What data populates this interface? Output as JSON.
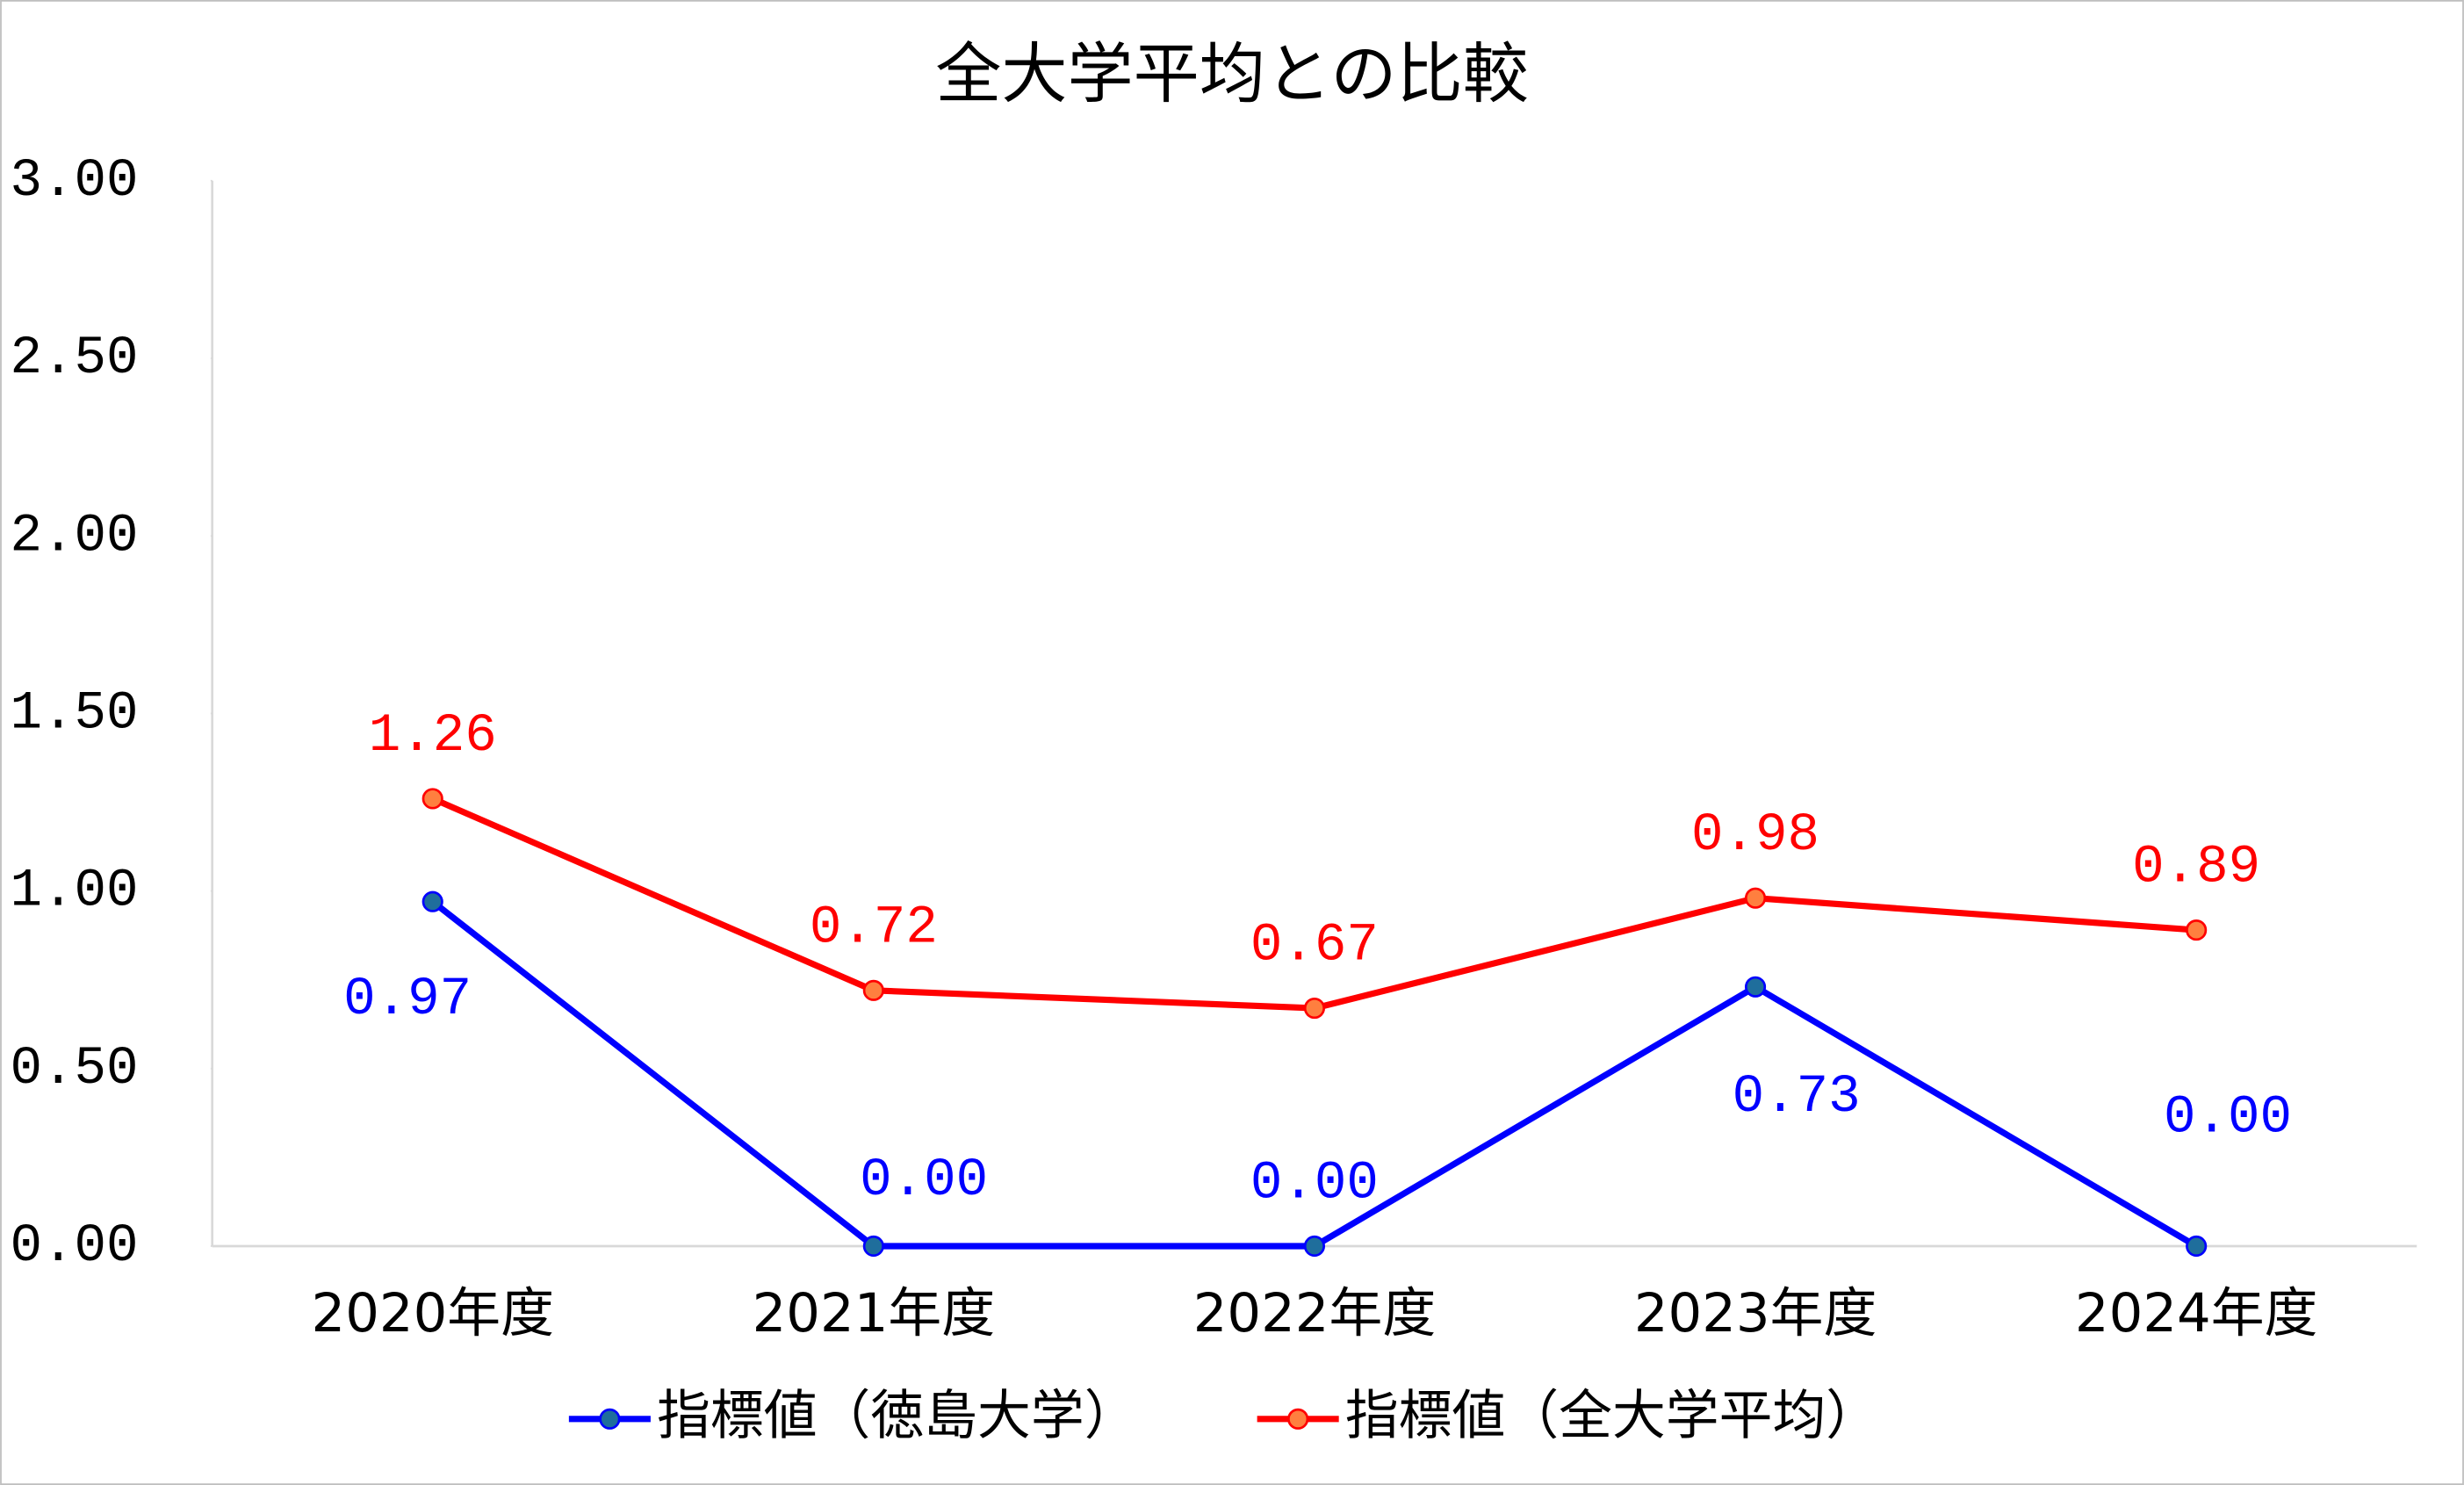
{
  "chart_data": {
    "type": "line",
    "title": "全大学平均との比較",
    "categories": [
      "2020年度",
      "2021年度",
      "2022年度",
      "2023年度",
      "2024年度"
    ],
    "series": [
      {
        "name": "指標値（徳島大学）",
        "color": "#0000ff",
        "marker_color": "#1f6e9c",
        "values": [
          0.97,
          0,
          0,
          0.73,
          0
        ],
        "value_labels": [
          "0.97",
          "0.00",
          "0.00",
          "0.73",
          "0.00"
        ]
      },
      {
        "name": "指標値（全大学平均）",
        "color": "#ff0000",
        "marker_color": "#ff7f3f",
        "values": [
          1.26,
          0.72,
          0.67,
          0.98,
          0.89
        ],
        "value_labels": [
          "1.26",
          "0.72",
          "0.67",
          "0.98",
          "0.89"
        ]
      }
    ],
    "ylim": [
      0,
      3
    ],
    "yticks": [
      {
        "value": 0,
        "label": "0.00"
      },
      {
        "value": 0.5,
        "label": "0.50"
      },
      {
        "value": 1,
        "label": "1.00"
      },
      {
        "value": 1.5,
        "label": "1.50"
      },
      {
        "value": 2,
        "label": "2.00"
      },
      {
        "value": 2.5,
        "label": "2.50"
      },
      {
        "value": 3,
        "label": "3.00"
      }
    ],
    "grid": false,
    "legend": "bottom"
  }
}
